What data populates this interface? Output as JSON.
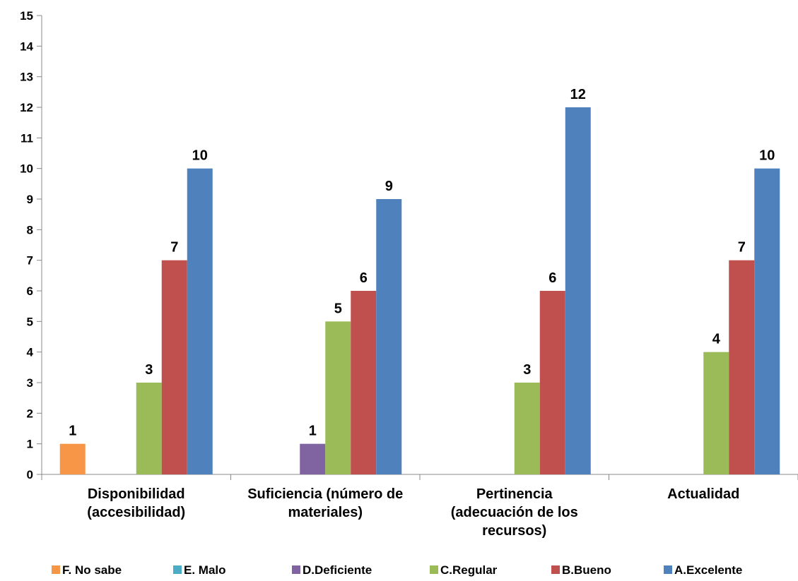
{
  "chart_data": {
    "type": "bar",
    "title": "",
    "xlabel": "",
    "ylabel": "",
    "ylim": [
      0,
      15
    ],
    "yticks": [
      0,
      1,
      2,
      3,
      4,
      5,
      6,
      7,
      8,
      9,
      10,
      11,
      12,
      13,
      14,
      15
    ],
    "grid": false,
    "legend_position": "bottom",
    "categories": [
      [
        "Disponibilidad",
        "(accesibilidad)"
      ],
      [
        "Suficiencia (número de",
        "materiales)"
      ],
      [
        "Pertinencia",
        "(adecuación de los",
        "recursos)"
      ],
      [
        "Actualidad"
      ]
    ],
    "series": [
      {
        "name": "F. No sabe",
        "color": "#F79646",
        "values": [
          1,
          0,
          0,
          0
        ]
      },
      {
        "name": "E. Malo",
        "color": "#4BACC6",
        "values": [
          0,
          0,
          0,
          0
        ]
      },
      {
        "name": "D.Deficiente",
        "color": "#8064A2",
        "values": [
          0,
          1,
          0,
          0
        ]
      },
      {
        "name": "C.Regular",
        "color": "#9BBB59",
        "values": [
          3,
          5,
          3,
          4
        ]
      },
      {
        "name": "B.Bueno",
        "color": "#C0504D",
        "values": [
          7,
          6,
          6,
          7
        ]
      },
      {
        "name": "A.Excelente",
        "color": "#4F81BD",
        "values": [
          10,
          9,
          12,
          10
        ]
      }
    ]
  }
}
